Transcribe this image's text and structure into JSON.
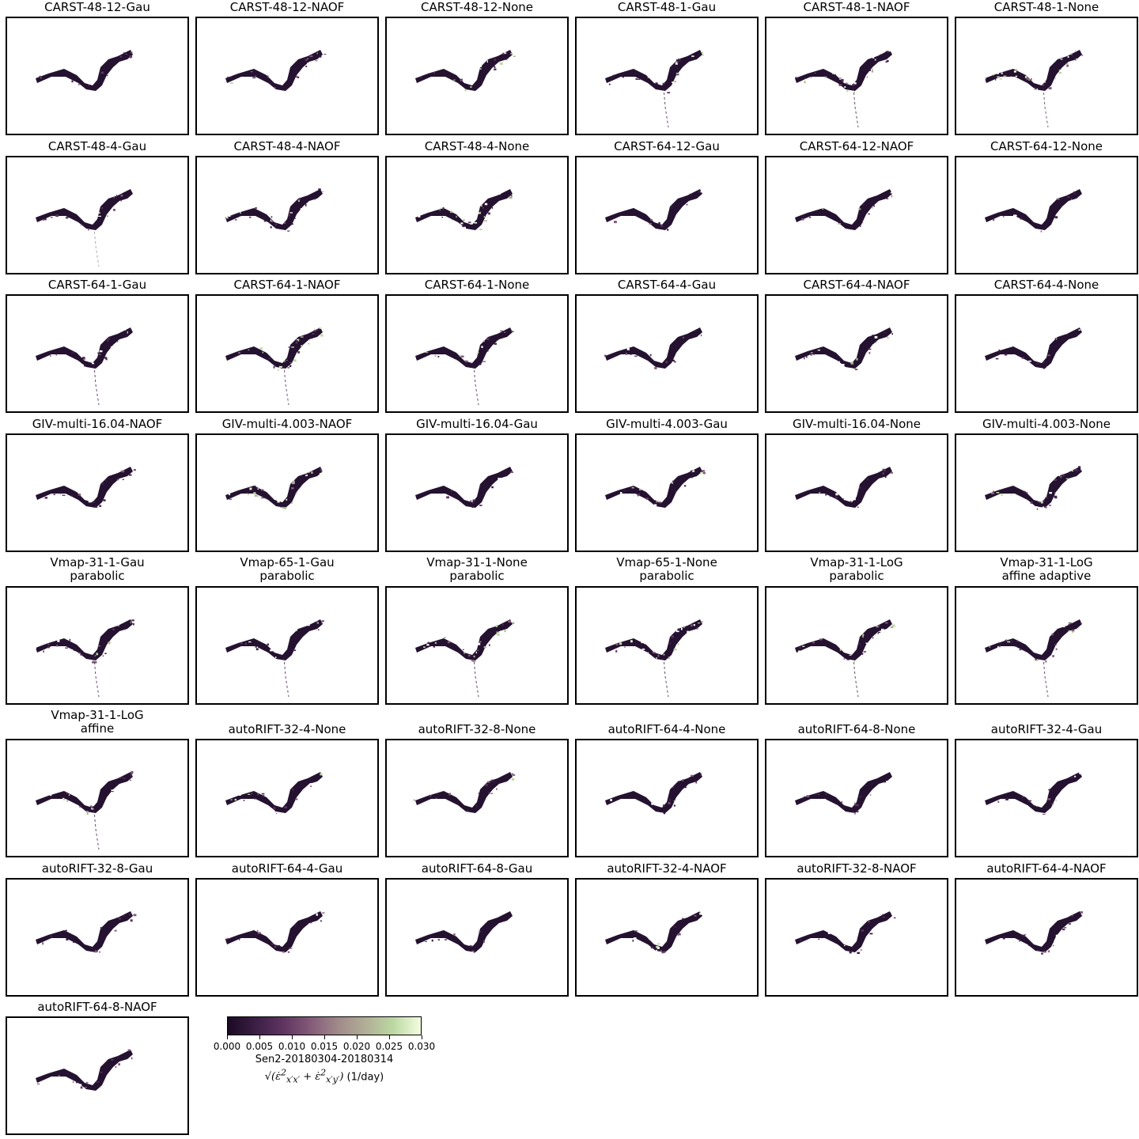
{
  "figure": {
    "panels": [
      {
        "title": "CARST-48-12-Gau",
        "speckle": 0.1,
        "bright": 0.05,
        "tail": 0.0
      },
      {
        "title": "CARST-48-12-NAOF",
        "speckle": 0.3,
        "bright": 0.1,
        "tail": 0.0
      },
      {
        "title": "CARST-48-12-None",
        "speckle": 0.5,
        "bright": 0.6,
        "tail": 0.0
      },
      {
        "title": "CARST-48-1-Gau",
        "speckle": 0.4,
        "bright": 0.2,
        "tail": 1.0
      },
      {
        "title": "CARST-48-1-NAOF",
        "speckle": 0.6,
        "bright": 0.5,
        "tail": 1.0
      },
      {
        "title": "CARST-48-1-None",
        "speckle": 0.6,
        "bright": 0.6,
        "tail": 0.8
      },
      {
        "title": "CARST-48-4-Gau",
        "speckle": 0.2,
        "bright": 0.05,
        "tail": 0.2
      },
      {
        "title": "CARST-48-4-NAOF",
        "speckle": 0.4,
        "bright": 0.3,
        "tail": 0.0
      },
      {
        "title": "CARST-48-4-None",
        "speckle": 0.5,
        "bright": 0.6,
        "tail": 0.0
      },
      {
        "title": "CARST-64-12-Gau",
        "speckle": 0.1,
        "bright": 0.02,
        "tail": 0.0
      },
      {
        "title": "CARST-64-12-NAOF",
        "speckle": 0.2,
        "bright": 0.2,
        "tail": 0.0
      },
      {
        "title": "CARST-64-12-None",
        "speckle": 0.1,
        "bright": 0.05,
        "tail": 0.0
      },
      {
        "title": "CARST-64-1-Gau",
        "speckle": 0.3,
        "bright": 0.1,
        "tail": 1.0
      },
      {
        "title": "CARST-64-1-NAOF",
        "speckle": 0.6,
        "bright": 0.5,
        "tail": 0.9
      },
      {
        "title": "CARST-64-1-None",
        "speckle": 0.4,
        "bright": 0.3,
        "tail": 1.0
      },
      {
        "title": "CARST-64-4-Gau",
        "speckle": 0.1,
        "bright": 0.02,
        "tail": 0.0
      },
      {
        "title": "CARST-64-4-NAOF",
        "speckle": 0.3,
        "bright": 0.3,
        "tail": 0.0
      },
      {
        "title": "CARST-64-4-None",
        "speckle": 0.2,
        "bright": 0.1,
        "tail": 0.0
      },
      {
        "title": "GIV-multi-16.04-NAOF",
        "speckle": 0.2,
        "bright": 0.05,
        "tail": 0.0
      },
      {
        "title": "GIV-multi-4.003-NAOF",
        "speckle": 0.9,
        "bright": 0.8,
        "tail": 0.0
      },
      {
        "title": "GIV-multi-16.04-Gau",
        "speckle": 0.1,
        "bright": 0.02,
        "tail": 0.0
      },
      {
        "title": "GIV-multi-4.003-Gau",
        "speckle": 0.6,
        "bright": 0.3,
        "tail": 0.0
      },
      {
        "title": "GIV-multi-16.04-None",
        "speckle": 0.2,
        "bright": 0.05,
        "tail": 0.0
      },
      {
        "title": "GIV-multi-4.003-None",
        "speckle": 0.7,
        "bright": 0.4,
        "tail": 0.0
      },
      {
        "title": "Vmap-31-1-Gau\nparabolic",
        "speckle": 0.5,
        "bright": 0.4,
        "tail": 1.0
      },
      {
        "title": "Vmap-65-1-Gau\nparabolic",
        "speckle": 0.2,
        "bright": 0.1,
        "tail": 1.0
      },
      {
        "title": "Vmap-31-1-None\nparabolic",
        "speckle": 0.5,
        "bright": 0.5,
        "tail": 1.0
      },
      {
        "title": "Vmap-65-1-None\nparabolic",
        "speckle": 0.5,
        "bright": 0.5,
        "tail": 1.0
      },
      {
        "title": "Vmap-31-1-LoG\nparabolic",
        "speckle": 0.5,
        "bright": 0.4,
        "tail": 1.0
      },
      {
        "title": "Vmap-31-1-LoG\naffine adaptive",
        "speckle": 0.4,
        "bright": 0.2,
        "tail": 1.0
      },
      {
        "title": "Vmap-31-1-LoG\naffine",
        "speckle": 0.4,
        "bright": 0.2,
        "tail": 1.0
      },
      {
        "title": "autoRIFT-32-4-None",
        "speckle": 0.3,
        "bright": 0.2,
        "tail": 0.0
      },
      {
        "title": "autoRIFT-32-8-None",
        "speckle": 0.2,
        "bright": 0.1,
        "tail": 0.0
      },
      {
        "title": "autoRIFT-64-4-None",
        "speckle": 0.2,
        "bright": 0.1,
        "tail": 0.0
      },
      {
        "title": "autoRIFT-64-8-None",
        "speckle": 0.2,
        "bright": 0.05,
        "tail": 0.0
      },
      {
        "title": "autoRIFT-32-4-Gau",
        "speckle": 0.2,
        "bright": 0.1,
        "tail": 0.0
      },
      {
        "title": "autoRIFT-32-8-Gau",
        "speckle": 0.2,
        "bright": 0.05,
        "tail": 0.0
      },
      {
        "title": "autoRIFT-64-4-Gau",
        "speckle": 0.2,
        "bright": 0.05,
        "tail": 0.0
      },
      {
        "title": "autoRIFT-64-8-Gau",
        "speckle": 0.1,
        "bright": 0.02,
        "tail": 0.0
      },
      {
        "title": "autoRIFT-32-4-NAOF",
        "speckle": 0.3,
        "bright": 0.1,
        "tail": 0.0
      },
      {
        "title": "autoRIFT-32-8-NAOF",
        "speckle": 0.2,
        "bright": 0.05,
        "tail": 0.0
      },
      {
        "title": "autoRIFT-64-4-NAOF",
        "speckle": 0.2,
        "bright": 0.05,
        "tail": 0.0
      },
      {
        "title": "autoRIFT-64-8-NAOF",
        "speckle": 0.2,
        "bright": 0.05,
        "tail": 0.0
      }
    ]
  },
  "chart_data": {
    "type": "heatmap",
    "colorbar": {
      "range": [
        0.0,
        0.03
      ],
      "ticks": [
        "0.000",
        "0.005",
        "0.010",
        "0.015",
        "0.020",
        "0.025",
        "0.030"
      ],
      "label_line1": "Sen2-20180304-20180314",
      "label_math": "√(ε̇²x′x′ + ε̇²x′y′)",
      "label_unit": "(1/day)",
      "colormap": [
        "#1b0a24",
        "#3b1f45",
        "#5e3460",
        "#845a79",
        "#a08a8a",
        "#b1ae96",
        "#bcd8a2",
        "#f4fde0"
      ]
    }
  }
}
